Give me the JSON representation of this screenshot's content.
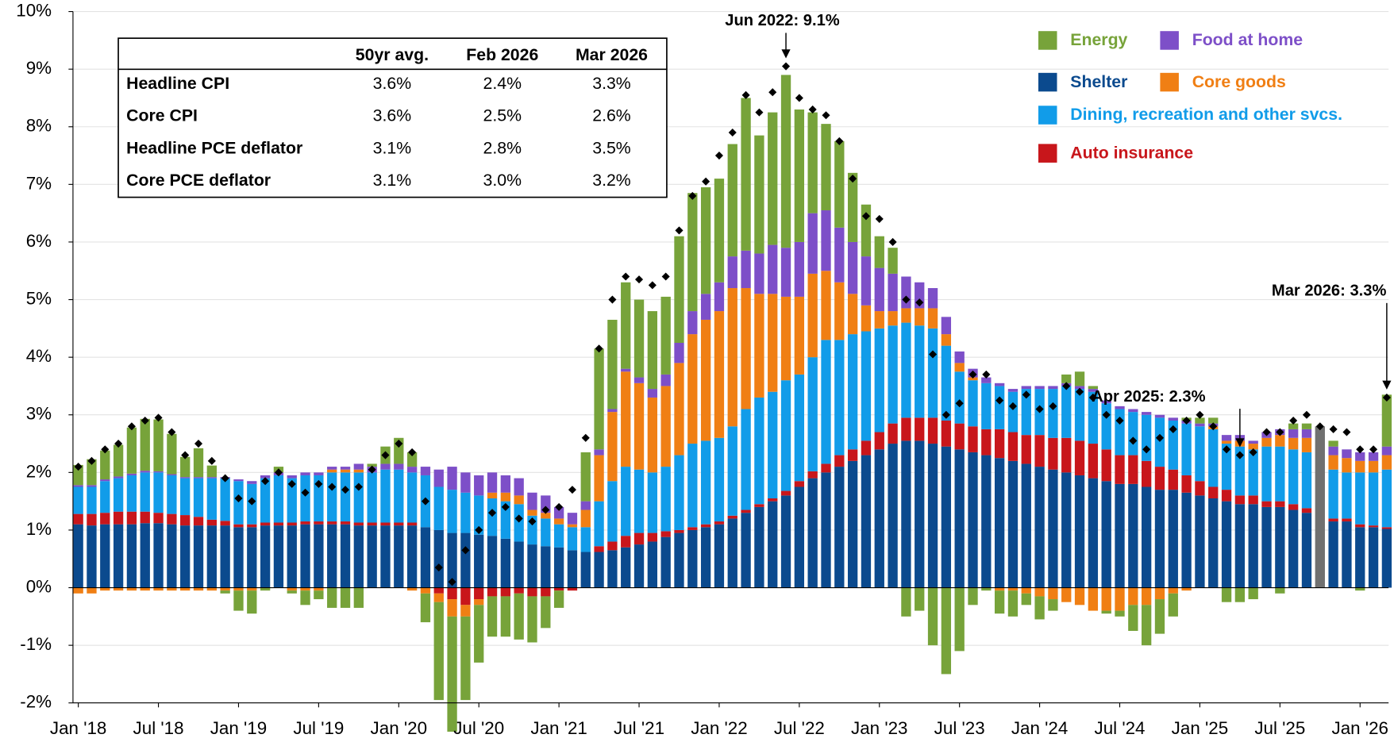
{
  "chart_data": {
    "type": "bar",
    "categories": [
      "Jan '18",
      null,
      null,
      null,
      null,
      null,
      "Jul '18",
      null,
      null,
      null,
      null,
      null,
      "Jan '19",
      null,
      null,
      null,
      null,
      null,
      "Jul '19",
      null,
      null,
      null,
      null,
      null,
      "Jan '20",
      null,
      null,
      null,
      null,
      null,
      "Jul '20",
      null,
      null,
      null,
      null,
      null,
      "Jan '21",
      null,
      null,
      null,
      null,
      null,
      "Jul '21",
      null,
      null,
      null,
      null,
      null,
      "Jan '22",
      null,
      null,
      null,
      null,
      null,
      "Jul '22",
      null,
      null,
      null,
      null,
      null,
      "Jan '23",
      null,
      null,
      null,
      null,
      null,
      "Jul '23",
      null,
      null,
      null,
      null,
      null,
      "Jan '24",
      null,
      null,
      null,
      null,
      null,
      "Jul '24",
      null,
      null,
      null,
      null,
      null,
      "Jan '25",
      null,
      null,
      null,
      null,
      null,
      "Jul '25",
      null,
      null,
      null,
      null,
      null,
      "Jan '26",
      null,
      null
    ],
    "series": [
      {
        "name": "Energy",
        "color": "#77a33a",
        "values": [
          0.35,
          0.45,
          0.5,
          0.55,
          0.8,
          0.9,
          0.9,
          0.7,
          0.35,
          0.5,
          0.2,
          -0.05,
          -0.35,
          -0.4,
          -0.05,
          0.1,
          -0.05,
          -0.25,
          -0.15,
          -0.35,
          -0.35,
          -0.35,
          0.05,
          0.3,
          0.45,
          0.25,
          -0.5,
          -1.7,
          -2.0,
          -1.45,
          -1.0,
          -0.7,
          -0.7,
          -0.8,
          -0.8,
          -0.55,
          -0.3,
          0.0,
          0.85,
          1.75,
          1.55,
          1.5,
          1.35,
          1.35,
          1.35,
          1.85,
          2.05,
          1.85,
          1.8,
          1.95,
          2.65,
          2.05,
          2.3,
          3.0,
          2.3,
          1.75,
          1.5,
          1.5,
          1.2,
          0.9,
          0.55,
          0.45,
          -0.5,
          -0.4,
          -1.0,
          -1.5,
          -1.1,
          -0.3,
          -0.05,
          -0.4,
          -0.45,
          -0.2,
          -0.4,
          -0.2,
          0.15,
          0.25,
          0.05,
          -0.05,
          -0.1,
          -0.45,
          -0.7,
          -0.6,
          -0.4,
          0.05,
          0.1,
          0.1,
          -0.25,
          -0.25,
          -0.2,
          0.0,
          -0.1,
          0.1,
          0.1,
          null,
          0.1,
          0.0,
          -0.05,
          0.0,
          0.9
        ]
      },
      {
        "name": "Food  at home",
        "color": "#7d4fc8",
        "values": [
          0.03,
          0.03,
          0.03,
          0.03,
          0.03,
          0.03,
          0.02,
          0.02,
          0.02,
          0.02,
          0.02,
          0.02,
          0.03,
          0.05,
          0.05,
          0.05,
          0.05,
          0.05,
          0.05,
          0.05,
          0.05,
          0.1,
          0.1,
          0.1,
          0.1,
          0.1,
          0.15,
          0.3,
          0.4,
          0.35,
          0.35,
          0.35,
          0.3,
          0.3,
          0.3,
          0.3,
          0.2,
          0.2,
          0.15,
          0.1,
          0.05,
          0.05,
          0.1,
          0.15,
          0.2,
          0.35,
          0.4,
          0.45,
          0.5,
          0.55,
          0.65,
          0.7,
          0.85,
          0.85,
          0.95,
          1.05,
          1.05,
          0.95,
          0.9,
          0.85,
          0.75,
          0.65,
          0.55,
          0.45,
          0.35,
          0.3,
          0.2,
          0.15,
          0.1,
          0.05,
          0.05,
          0.05,
          0.05,
          0.05,
          0.05,
          0.05,
          0.05,
          0.05,
          0.05,
          0.05,
          0.05,
          0.05,
          0.05,
          0.05,
          0.05,
          0.05,
          0.1,
          0.1,
          0.05,
          0.1,
          0.1,
          0.15,
          0.15,
          null,
          0.15,
          0.15,
          0.15,
          0.15,
          0.15
        ]
      },
      {
        "name": "Shelter",
        "color": "#0b4a8e",
        "values": [
          1.1,
          1.08,
          1.1,
          1.1,
          1.1,
          1.12,
          1.12,
          1.1,
          1.08,
          1.08,
          1.08,
          1.08,
          1.05,
          1.05,
          1.08,
          1.08,
          1.08,
          1.1,
          1.1,
          1.1,
          1.1,
          1.08,
          1.08,
          1.08,
          1.08,
          1.08,
          1.05,
          1.0,
          0.95,
          0.95,
          0.92,
          0.9,
          0.85,
          0.8,
          0.75,
          0.72,
          0.7,
          0.65,
          0.62,
          0.62,
          0.65,
          0.7,
          0.75,
          0.8,
          0.88,
          0.95,
          1.0,
          1.05,
          1.1,
          1.2,
          1.3,
          1.4,
          1.5,
          1.6,
          1.75,
          1.9,
          2.0,
          2.1,
          2.2,
          2.3,
          2.4,
          2.5,
          2.55,
          2.55,
          2.5,
          2.45,
          2.4,
          2.35,
          2.3,
          2.25,
          2.2,
          2.15,
          2.1,
          2.05,
          2.0,
          1.95,
          1.9,
          1.85,
          1.8,
          1.8,
          1.75,
          1.7,
          1.7,
          1.65,
          1.6,
          1.55,
          1.5,
          1.45,
          1.45,
          1.4,
          1.4,
          1.35,
          1.3,
          null,
          1.15,
          1.15,
          1.05,
          1.05,
          1.02
        ]
      },
      {
        "name": "Core goods",
        "color": "#f07f14",
        "values": [
          -0.1,
          -0.1,
          -0.05,
          -0.05,
          -0.05,
          -0.05,
          -0.05,
          -0.05,
          -0.05,
          -0.05,
          -0.05,
          -0.05,
          -0.05,
          -0.05,
          0.0,
          0.0,
          -0.05,
          -0.05,
          -0.05,
          0.05,
          0.05,
          0.05,
          0.0,
          0.0,
          0.0,
          -0.05,
          -0.1,
          -0.15,
          -0.3,
          -0.2,
          -0.1,
          0.1,
          0.15,
          0.15,
          0.1,
          0.1,
          0.1,
          0.05,
          0.3,
          0.8,
          1.2,
          1.65,
          1.5,
          1.3,
          1.4,
          1.6,
          1.9,
          2.1,
          2.2,
          2.4,
          2.1,
          1.8,
          1.7,
          1.45,
          1.35,
          1.45,
          1.2,
          1.0,
          0.7,
          0.45,
          0.3,
          0.25,
          0.25,
          0.3,
          0.35,
          0.2,
          0.15,
          0.05,
          0.0,
          -0.05,
          -0.05,
          -0.1,
          -0.15,
          -0.2,
          -0.25,
          -0.3,
          -0.4,
          -0.4,
          -0.4,
          -0.3,
          -0.3,
          -0.2,
          -0.1,
          -0.05,
          0.0,
          0.05,
          0.05,
          0.1,
          0.1,
          0.15,
          0.2,
          0.2,
          0.25,
          null,
          0.25,
          0.25,
          0.2,
          0.2,
          0.25
        ]
      },
      {
        "name": "Dining,  recreation and other svcs.",
        "color": "#119ce9",
        "values": [
          0.47,
          0.47,
          0.55,
          0.58,
          0.63,
          0.68,
          0.7,
          0.67,
          0.64,
          0.67,
          0.72,
          0.74,
          0.75,
          0.7,
          0.77,
          0.82,
          0.77,
          0.8,
          0.8,
          0.85,
          0.85,
          0.87,
          0.87,
          0.92,
          0.92,
          0.87,
          0.9,
          0.75,
          0.75,
          0.7,
          0.68,
          0.65,
          0.65,
          0.65,
          0.5,
          0.48,
          0.4,
          0.4,
          0.43,
          0.78,
          1.05,
          1.2,
          1.1,
          1.05,
          1.12,
          1.3,
          1.45,
          1.45,
          1.45,
          1.55,
          1.75,
          1.85,
          1.85,
          1.92,
          1.85,
          1.98,
          2.15,
          2.0,
          2.0,
          1.9,
          1.8,
          1.7,
          1.65,
          1.6,
          1.55,
          1.3,
          0.9,
          0.8,
          0.8,
          0.75,
          0.7,
          0.8,
          0.8,
          0.85,
          0.9,
          0.9,
          0.9,
          0.8,
          0.8,
          0.75,
          0.8,
          0.85,
          0.85,
          0.9,
          0.95,
          1.0,
          0.8,
          0.85,
          0.8,
          0.95,
          0.95,
          0.95,
          0.97,
          null,
          0.85,
          0.8,
          0.9,
          0.92,
          1.0
        ]
      },
      {
        "name": "Auto  insurance",
        "color": "#c8161b",
        "values": [
          0.18,
          0.2,
          0.2,
          0.22,
          0.22,
          0.2,
          0.18,
          0.18,
          0.18,
          0.15,
          0.1,
          0.08,
          0.05,
          0.05,
          0.05,
          0.05,
          0.05,
          0.05,
          0.05,
          0.05,
          0.05,
          0.05,
          0.05,
          0.05,
          0.05,
          0.05,
          0.0,
          -0.1,
          -0.2,
          -0.3,
          -0.2,
          -0.15,
          -0.15,
          -0.1,
          -0.15,
          -0.15,
          -0.05,
          -0.05,
          0.0,
          0.1,
          0.15,
          0.2,
          0.2,
          0.15,
          0.1,
          0.05,
          0.05,
          0.05,
          0.05,
          0.05,
          0.05,
          0.05,
          0.05,
          0.08,
          0.1,
          0.12,
          0.15,
          0.2,
          0.2,
          0.25,
          0.3,
          0.35,
          0.4,
          0.4,
          0.45,
          0.45,
          0.45,
          0.45,
          0.45,
          0.5,
          0.5,
          0.5,
          0.55,
          0.55,
          0.6,
          0.6,
          0.6,
          0.55,
          0.5,
          0.5,
          0.45,
          0.4,
          0.35,
          0.3,
          0.25,
          0.2,
          0.2,
          0.15,
          0.15,
          0.1,
          0.1,
          0.1,
          0.08,
          null,
          0.05,
          0.05,
          0.05,
          0.03,
          0.03
        ]
      },
      {
        "color": "#707070",
        "values": [
          null,
          null,
          null,
          null,
          null,
          null,
          null,
          null,
          null,
          null,
          null,
          null,
          null,
          null,
          null,
          null,
          null,
          null,
          null,
          null,
          null,
          null,
          null,
          null,
          null,
          null,
          null,
          null,
          null,
          null,
          null,
          null,
          null,
          null,
          null,
          null,
          null,
          null,
          null,
          null,
          null,
          null,
          null,
          null,
          null,
          null,
          null,
          null,
          null,
          null,
          null,
          null,
          null,
          null,
          null,
          null,
          null,
          null,
          null,
          null,
          null,
          null,
          null,
          null,
          null,
          null,
          null,
          null,
          null,
          null,
          null,
          null,
          null,
          null,
          null,
          null,
          null,
          null,
          null,
          null,
          null,
          null,
          null,
          null,
          null,
          null,
          null,
          null,
          null,
          null,
          null,
          null,
          null,
          2.8,
          null,
          null,
          null,
          null,
          null
        ]
      }
    ],
    "headline_values": [
      2.1,
      2.2,
      2.4,
      2.5,
      2.8,
      2.9,
      2.95,
      2.7,
      2.3,
      2.5,
      2.2,
      1.9,
      1.55,
      1.5,
      1.85,
      2.0,
      1.8,
      1.65,
      1.8,
      1.75,
      1.7,
      1.75,
      2.05,
      2.3,
      2.5,
      2.35,
      1.5,
      0.35,
      0.1,
      0.65,
      1.0,
      1.3,
      1.4,
      1.2,
      1.15,
      1.35,
      1.4,
      1.7,
      2.6,
      4.15,
      5.0,
      5.4,
      5.35,
      5.25,
      5.4,
      6.2,
      6.8,
      7.05,
      7.5,
      7.9,
      8.55,
      8.25,
      8.6,
      9.05,
      8.5,
      8.3,
      8.2,
      7.75,
      7.1,
      6.45,
      6.4,
      6.0,
      5.0,
      4.95,
      4.05,
      3.0,
      3.2,
      3.7,
      3.7,
      3.25,
      3.15,
      3.35,
      3.1,
      3.15,
      3.5,
      3.4,
      3.3,
      3.0,
      2.9,
      2.55,
      2.4,
      2.6,
      2.75,
      2.9,
      3.0,
      2.8,
      2.4,
      2.3,
      2.35,
      2.7,
      2.7,
      2.9,
      3.0,
      2.8,
      2.75,
      2.7,
      2.4,
      2.4,
      3.3
    ],
    "headline_color": "#000000",
    "annotations": [
      "Jun 2022: 9.1%",
      "Apr 2025: 2.3%",
      "Mar 2026: 3.3%"
    ],
    "ylim": [
      -2,
      10
    ],
    "yticks": [
      {
        "value": -2,
        "label": "-2%"
      },
      {
        "value": -1,
        "label": "-1%"
      },
      {
        "value": 0,
        "label": "0%"
      },
      {
        "value": 1,
        "label": "1%"
      },
      {
        "value": 2,
        "label": "2%"
      },
      {
        "value": 3,
        "label": "3%"
      },
      {
        "value": 4,
        "label": "4%"
      },
      {
        "value": 5,
        "label": "5%"
      },
      {
        "value": 6,
        "label": "6%"
      },
      {
        "value": 7,
        "label": "7%"
      },
      {
        "value": 8,
        "label": "8%"
      },
      {
        "value": 9,
        "label": "9%"
      },
      {
        "value": 10,
        "label": "10%"
      }
    ],
    "grid": true,
    "legend": "top-right",
    "table": {
      "columns": [
        "50yr avg.",
        "Feb 2026",
        "Mar 2026"
      ],
      "rows": [
        {
          "label": "Headline CPI",
          "values": [
            "3.6%",
            "2.4%",
            "3.3%"
          ]
        },
        {
          "label": "Core CPI",
          "values": [
            "3.6%",
            "2.5%",
            "2.6%"
          ]
        },
        {
          "label": "Headline PCE deflator",
          "values": [
            "3.1%",
            "2.8%",
            "3.5%"
          ]
        },
        {
          "label": "Core PCE deflator",
          "values": [
            "3.1%",
            "3.0%",
            "3.2%"
          ]
        }
      ]
    }
  }
}
